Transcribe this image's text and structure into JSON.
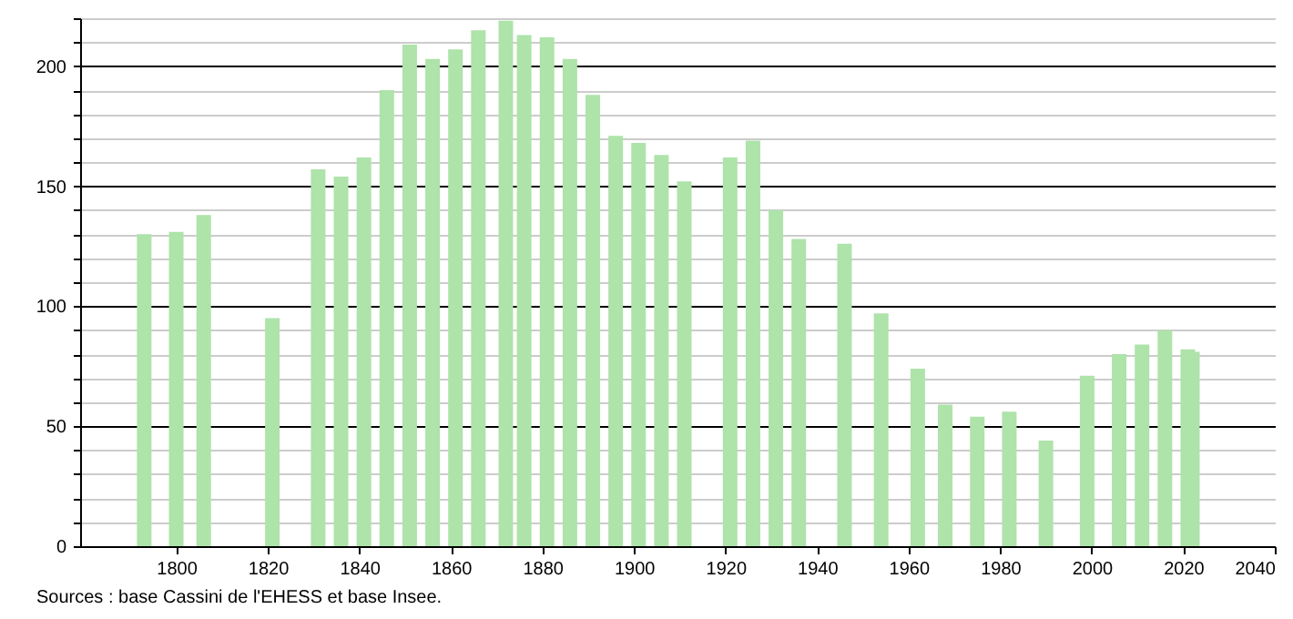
{
  "chart_data": {
    "type": "bar",
    "annotations": [
      "Sources : base Cassini de l'EHESS et base Insee."
    ],
    "x": [
      1793,
      1800,
      1806,
      1821,
      1831,
      1836,
      1841,
      1846,
      1851,
      1856,
      1861,
      1866,
      1872,
      1876,
      1881,
      1886,
      1891,
      1896,
      1901,
      1906,
      1911,
      1921,
      1926,
      1931,
      1936,
      1946,
      1954,
      1962,
      1968,
      1975,
      1982,
      1990,
      1999,
      2006,
      2011,
      2016,
      2021,
      2022
    ],
    "values": [
      130,
      131,
      138,
      95,
      157,
      154,
      162,
      190,
      209,
      203,
      207,
      215,
      219,
      213,
      212,
      203,
      188,
      171,
      168,
      163,
      152,
      162,
      169,
      140,
      128,
      126,
      97,
      74,
      59,
      54,
      56,
      44,
      71,
      80,
      84,
      90,
      82,
      81
    ],
    "color": "#aee3aa",
    "xlim": [
      1779,
      2040
    ],
    "xticks": [
      1800,
      1820,
      1840,
      1860,
      1880,
      1900,
      1920,
      1940,
      1960,
      1980,
      2000,
      2020,
      2040
    ],
    "ylim": [
      0,
      220
    ],
    "yticks": [
      0,
      {
        "value": 10,
        "label": null
      },
      {
        "value": 20,
        "label": null
      },
      {
        "value": 30,
        "label": null
      },
      {
        "value": 40,
        "label": null
      },
      50,
      {
        "value": 60,
        "label": null
      },
      {
        "value": 70,
        "label": null
      },
      {
        "value": 80,
        "label": null
      },
      {
        "value": 90,
        "label": null
      },
      100,
      {
        "value": 110,
        "label": null
      },
      {
        "value": 120,
        "label": null
      },
      {
        "value": 130,
        "label": null
      },
      {
        "value": 140,
        "label": null
      },
      150,
      {
        "value": 160,
        "label": null
      },
      {
        "value": 170,
        "label": null
      },
      {
        "value": 180,
        "label": null
      },
      {
        "value": 190,
        "label": null
      },
      200,
      {
        "value": 210,
        "label": null
      },
      {
        "value": 220,
        "label": null
      }
    ],
    "grid": "y"
  }
}
